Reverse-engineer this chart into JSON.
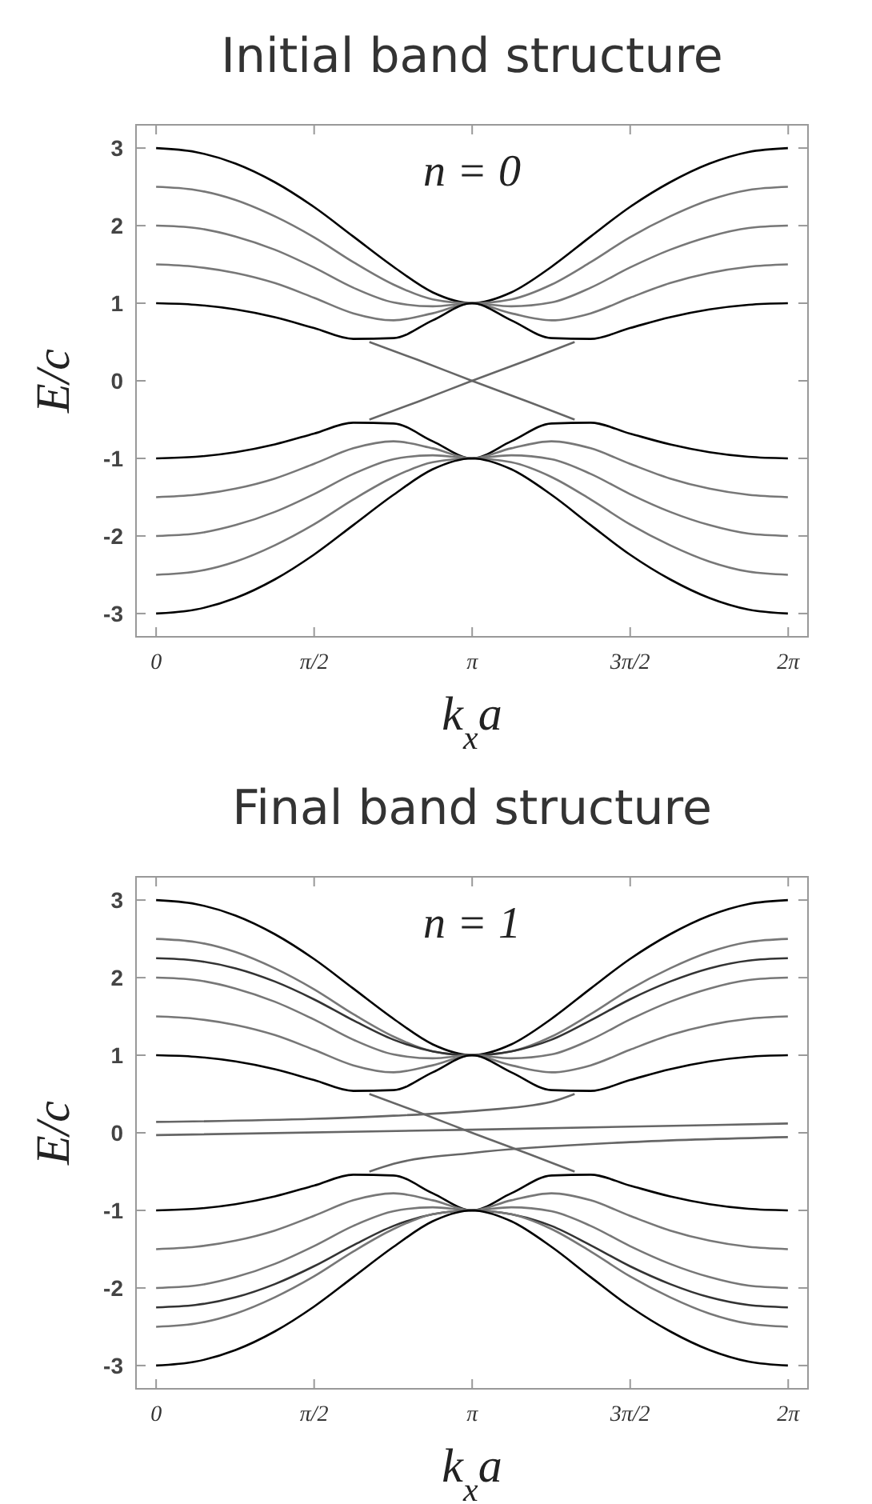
{
  "chart_data": [
    {
      "type": "line",
      "title": "Initial band structure",
      "xlabel": "k$_{x}$a",
      "ylabel": "E/c",
      "annotations": [
        "n = 0"
      ],
      "x": [
        0,
        0.39,
        0.79,
        1.18,
        1.57,
        1.96,
        2.36,
        2.75,
        3.14,
        3.53,
        3.93,
        4.32,
        4.71,
        5.11,
        5.5,
        5.89,
        6.28
      ],
      "xlim": [
        -0.2,
        6.48
      ],
      "ylim": [
        -3.3,
        3.3
      ],
      "xticks": [
        {
          "value": 0,
          "label": "0"
        },
        {
          "value": 1.5708,
          "label": "π/2"
        },
        {
          "value": 3.1416,
          "label": "π"
        },
        {
          "value": 4.7124,
          "label": "3π/2"
        },
        {
          "value": 6.2832,
          "label": "2π"
        }
      ],
      "yticks": [
        -3,
        -2,
        -1,
        0,
        1,
        2,
        3
      ],
      "grid": false,
      "series": [
        {
          "color": "#000000",
          "values": [
            3,
            2.95,
            2.8,
            2.56,
            2.24,
            1.86,
            1.47,
            1.14,
            1,
            1.14,
            1.47,
            1.86,
            2.24,
            2.56,
            2.8,
            2.95,
            3
          ]
        },
        {
          "color": "#777777",
          "values": [
            2.5,
            2.46,
            2.33,
            2.12,
            1.85,
            1.53,
            1.24,
            1.05,
            1,
            1.05,
            1.24,
            1.53,
            1.85,
            2.12,
            2.33,
            2.46,
            2.5
          ]
        },
        {
          "color": "#777777",
          "values": [
            2,
            1.97,
            1.86,
            1.69,
            1.46,
            1.2,
            1.01,
            0.96,
            1,
            0.96,
            1.01,
            1.2,
            1.46,
            1.69,
            1.86,
            1.97,
            2
          ]
        },
        {
          "color": "#777777",
          "values": [
            1.5,
            1.47,
            1.39,
            1.26,
            1.07,
            0.87,
            0.78,
            0.87,
            1,
            0.87,
            0.78,
            0.87,
            1.07,
            1.26,
            1.39,
            1.47,
            1.5
          ]
        },
        {
          "color": "#000000",
          "values": [
            1,
            0.98,
            0.92,
            0.82,
            0.68,
            0.54,
            0.55,
            0.78,
            1,
            0.78,
            0.55,
            0.54,
            0.68,
            0.82,
            0.92,
            0.98,
            1
          ]
        },
        {
          "color": "#000000",
          "values": [
            -1,
            -0.98,
            -0.92,
            -0.82,
            -0.68,
            -0.54,
            -0.55,
            -0.78,
            -1,
            -0.78,
            -0.55,
            -0.54,
            -0.68,
            -0.82,
            -0.92,
            -0.98,
            -1
          ]
        },
        {
          "color": "#777777",
          "values": [
            -1.5,
            -1.47,
            -1.39,
            -1.26,
            -1.07,
            -0.87,
            -0.78,
            -0.87,
            -1,
            -0.87,
            -0.78,
            -0.87,
            -1.07,
            -1.26,
            -1.39,
            -1.47,
            -1.5
          ]
        },
        {
          "color": "#777777",
          "values": [
            -2,
            -1.97,
            -1.86,
            -1.69,
            -1.46,
            -1.2,
            -1.01,
            -0.96,
            -1,
            -0.96,
            -1.01,
            -1.2,
            -1.46,
            -1.69,
            -1.86,
            -1.97,
            -2
          ]
        },
        {
          "color": "#777777",
          "values": [
            -2.5,
            -2.46,
            -2.33,
            -2.12,
            -1.85,
            -1.53,
            -1.24,
            -1.05,
            -1,
            -1.05,
            -1.24,
            -1.53,
            -1.85,
            -2.12,
            -2.33,
            -2.46,
            -2.5
          ]
        },
        {
          "color": "#000000",
          "values": [
            -3,
            -2.95,
            -2.8,
            -2.56,
            -2.24,
            -1.86,
            -1.47,
            -1.14,
            -1,
            -1.14,
            -1.47,
            -1.86,
            -2.24,
            -2.56,
            -2.8,
            -2.95,
            -3
          ]
        },
        {
          "color": "#666666",
          "x": [
            2.12,
            2.6,
            3.14,
            3.7,
            4.16
          ],
          "values": [
            0.5,
            0.27,
            0,
            -0.27,
            -0.5
          ]
        },
        {
          "color": "#666666",
          "x": [
            2.12,
            2.6,
            3.14,
            3.7,
            4.16
          ],
          "values": [
            -0.5,
            -0.27,
            0,
            0.27,
            0.5
          ]
        }
      ]
    },
    {
      "type": "line",
      "title": "Final band structure",
      "xlabel": "k$_{x}$a",
      "ylabel": "E/c",
      "annotations": [
        "n = 1"
      ],
      "x": [
        0,
        0.39,
        0.79,
        1.18,
        1.57,
        1.96,
        2.36,
        2.75,
        3.14,
        3.53,
        3.93,
        4.32,
        4.71,
        5.11,
        5.5,
        5.89,
        6.28
      ],
      "xlim": [
        -0.2,
        6.48
      ],
      "ylim": [
        -3.3,
        3.3
      ],
      "xticks": [
        {
          "value": 0,
          "label": "0"
        },
        {
          "value": 1.5708,
          "label": "π/2"
        },
        {
          "value": 3.1416,
          "label": "π"
        },
        {
          "value": 4.7124,
          "label": "3π/2"
        },
        {
          "value": 6.2832,
          "label": "2π"
        }
      ],
      "yticks": [
        -3,
        -2,
        -1,
        0,
        1,
        2,
        3
      ],
      "grid": false,
      "series": [
        {
          "color": "#000000",
          "values": [
            3,
            2.95,
            2.8,
            2.56,
            2.24,
            1.86,
            1.47,
            1.14,
            1,
            1.14,
            1.47,
            1.86,
            2.24,
            2.56,
            2.8,
            2.95,
            3
          ]
        },
        {
          "color": "#777777",
          "values": [
            2.5,
            2.46,
            2.33,
            2.12,
            1.85,
            1.53,
            1.24,
            1.05,
            1,
            1.05,
            1.24,
            1.53,
            1.85,
            2.12,
            2.33,
            2.46,
            2.5
          ]
        },
        {
          "color": "#333333",
          "values": [
            2.25,
            2.22,
            2.12,
            1.95,
            1.72,
            1.45,
            1.2,
            1.05,
            1,
            1.05,
            1.2,
            1.45,
            1.72,
            1.95,
            2.12,
            2.22,
            2.25
          ]
        },
        {
          "color": "#777777",
          "values": [
            2,
            1.97,
            1.86,
            1.69,
            1.46,
            1.2,
            1.01,
            0.96,
            1,
            0.96,
            1.01,
            1.2,
            1.46,
            1.69,
            1.86,
            1.97,
            2
          ]
        },
        {
          "color": "#777777",
          "values": [
            1.5,
            1.47,
            1.39,
            1.26,
            1.07,
            0.87,
            0.78,
            0.87,
            1,
            0.87,
            0.78,
            0.87,
            1.07,
            1.26,
            1.39,
            1.47,
            1.5
          ]
        },
        {
          "color": "#000000",
          "values": [
            1,
            0.98,
            0.92,
            0.82,
            0.68,
            0.54,
            0.55,
            0.78,
            1,
            0.78,
            0.55,
            0.54,
            0.68,
            0.82,
            0.92,
            0.98,
            1
          ]
        },
        {
          "color": "#000000",
          "values": [
            -1,
            -0.98,
            -0.92,
            -0.82,
            -0.68,
            -0.54,
            -0.55,
            -0.78,
            -1,
            -0.78,
            -0.55,
            -0.54,
            -0.68,
            -0.82,
            -0.92,
            -0.98,
            -1
          ]
        },
        {
          "color": "#777777",
          "values": [
            -1.5,
            -1.47,
            -1.39,
            -1.26,
            -1.07,
            -0.87,
            -0.78,
            -0.87,
            -1,
            -0.87,
            -0.78,
            -0.87,
            -1.07,
            -1.26,
            -1.39,
            -1.47,
            -1.5
          ]
        },
        {
          "color": "#777777",
          "values": [
            -2,
            -1.97,
            -1.86,
            -1.69,
            -1.46,
            -1.2,
            -1.01,
            -0.96,
            -1,
            -0.96,
            -1.01,
            -1.2,
            -1.46,
            -1.69,
            -1.86,
            -1.97,
            -2
          ]
        },
        {
          "color": "#333333",
          "values": [
            -2.25,
            -2.22,
            -2.12,
            -1.95,
            -1.72,
            -1.45,
            -1.2,
            -1.05,
            -1,
            -1.05,
            -1.2,
            -1.45,
            -1.72,
            -1.95,
            -2.12,
            -2.22,
            -2.25
          ]
        },
        {
          "color": "#777777",
          "values": [
            -2.5,
            -2.46,
            -2.33,
            -2.12,
            -1.85,
            -1.53,
            -1.24,
            -1.05,
            -1,
            -1.05,
            -1.24,
            -1.53,
            -1.85,
            -2.12,
            -2.33,
            -2.46,
            -2.5
          ]
        },
        {
          "color": "#000000",
          "values": [
            -3,
            -2.95,
            -2.8,
            -2.56,
            -2.24,
            -1.86,
            -1.47,
            -1.14,
            -1,
            -1.14,
            -1.47,
            -1.86,
            -2.24,
            -2.56,
            -2.8,
            -2.95,
            -3
          ]
        },
        {
          "color": "#666666",
          "x": [
            2.12,
            2.6,
            3.14,
            3.7,
            4.16
          ],
          "values": [
            0.5,
            0.27,
            0,
            -0.27,
            -0.5
          ]
        },
        {
          "color": "#666666",
          "x": [
            0,
            1.57,
            2.36,
            3.14,
            3.93,
            4.16
          ],
          "values": [
            0.14,
            0.18,
            0.22,
            0.28,
            0.4,
            0.5
          ]
        },
        {
          "color": "#666666",
          "x": [
            0,
            3.14,
            6.28
          ],
          "values": [
            -0.03,
            0.04,
            0.12
          ]
        },
        {
          "color": "#666666",
          "x": [
            2.12,
            2.36,
            3.14,
            4.71,
            6.28
          ],
          "values": [
            -0.5,
            -0.4,
            -0.26,
            -0.12,
            -0.055
          ]
        }
      ]
    }
  ]
}
